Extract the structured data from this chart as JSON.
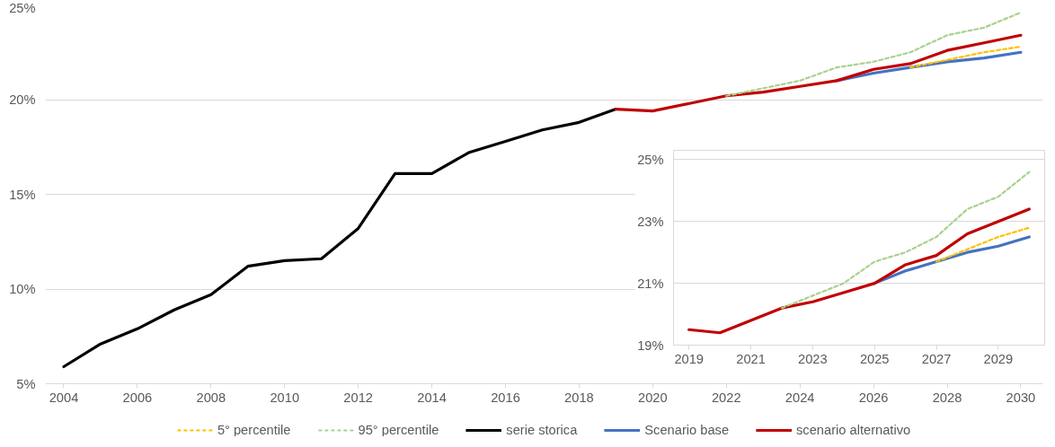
{
  "chart_data": [
    {
      "type": "line",
      "xlim": [
        2003.5,
        2030.6
      ],
      "xticks": [
        2004,
        2006,
        2008,
        2010,
        2012,
        2014,
        2016,
        2018,
        2020,
        2022,
        2024,
        2026,
        2028,
        2030
      ],
      "ylim": [
        5,
        25
      ],
      "yticks": [
        {
          "value": 5,
          "label": "5%"
        },
        {
          "value": 10,
          "label": "10%"
        },
        {
          "value": 15,
          "label": "15%"
        },
        {
          "value": 20,
          "label": "20%"
        },
        {
          "value": 25,
          "label": "25%"
        }
      ],
      "grid": "y",
      "legend": "bottom",
      "marker": "none",
      "series": [
        {
          "name": "5° percentile",
          "color": "#ffc000",
          "line_style": "dashed",
          "x": [
            2027,
            2028,
            2029,
            2030
          ],
          "values": [
            21.7,
            22.1,
            22.5,
            22.8
          ]
        },
        {
          "name": "95° percentile",
          "color": "#a9d18e",
          "line_style": "dashed",
          "x": [
            2022,
            2023,
            2024,
            2025,
            2026,
            2027,
            2028,
            2029,
            2030
          ],
          "values": [
            20.2,
            20.6,
            21.0,
            21.7,
            22.0,
            22.5,
            23.4,
            23.8,
            24.6
          ]
        },
        {
          "name": "serie storica",
          "color": "#000000",
          "line_style": "solid",
          "x": [
            2004,
            2005,
            2006,
            2007,
            2008,
            2009,
            2010,
            2011,
            2012,
            2013,
            2014,
            2015,
            2016,
            2017,
            2018,
            2019
          ],
          "values": [
            5.9,
            7.1,
            7.9,
            8.9,
            9.7,
            11.2,
            11.5,
            11.6,
            13.2,
            16.1,
            16.1,
            17.2,
            17.8,
            18.4,
            18.8,
            19.5
          ]
        },
        {
          "name": "Scenario base",
          "color": "#4472c4",
          "line_style": "solid",
          "x": [
            2025,
            2026,
            2027,
            2028,
            2029,
            2030
          ],
          "values": [
            21.0,
            21.4,
            21.7,
            22.0,
            22.2,
            22.5
          ]
        },
        {
          "name": "scenario alternativo",
          "color": "#c00000",
          "line_style": "solid",
          "x": [
            2019,
            2020,
            2021,
            2022,
            2023,
            2024,
            2025,
            2026,
            2027,
            2028,
            2029,
            2030
          ],
          "values": [
            19.5,
            19.4,
            19.8,
            20.2,
            20.4,
            20.7,
            21.0,
            21.6,
            21.9,
            22.6,
            23.0,
            23.4
          ]
        }
      ]
    },
    {
      "type": "line",
      "xlim": [
        2018.5,
        2030.5
      ],
      "xticks": [
        2019,
        2021,
        2023,
        2025,
        2027,
        2029
      ],
      "ylim": [
        19,
        25.3
      ],
      "yticks": [
        {
          "value": 19,
          "label": "19%"
        },
        {
          "value": 21,
          "label": "21%"
        },
        {
          "value": 23,
          "label": "23%"
        },
        {
          "value": 25,
          "label": "25%"
        }
      ],
      "grid": "y",
      "marker": "none",
      "series": [
        {
          "color": "#ffc000",
          "line_style": "dashed",
          "x": [
            2027,
            2028,
            2029,
            2030
          ],
          "values": [
            21.7,
            22.1,
            22.5,
            22.8
          ]
        },
        {
          "color": "#a9d18e",
          "line_style": "dashed",
          "x": [
            2022,
            2023,
            2024,
            2025,
            2026,
            2027,
            2028,
            2029,
            2030
          ],
          "values": [
            20.2,
            20.6,
            21.0,
            21.7,
            22.0,
            22.5,
            23.4,
            23.8,
            24.6
          ]
        },
        {
          "color": "#4472c4",
          "line_style": "solid",
          "x": [
            2025,
            2026,
            2027,
            2028,
            2029,
            2030
          ],
          "values": [
            21.0,
            21.4,
            21.7,
            22.0,
            22.2,
            22.5
          ]
        },
        {
          "color": "#c00000",
          "line_style": "solid",
          "x": [
            2019,
            2020,
            2021,
            2022,
            2023,
            2024,
            2025,
            2026,
            2027,
            2028,
            2029,
            2030
          ],
          "values": [
            19.5,
            19.4,
            19.8,
            20.2,
            20.4,
            20.7,
            21.0,
            21.6,
            21.9,
            22.6,
            23.0,
            23.4
          ]
        }
      ]
    }
  ]
}
